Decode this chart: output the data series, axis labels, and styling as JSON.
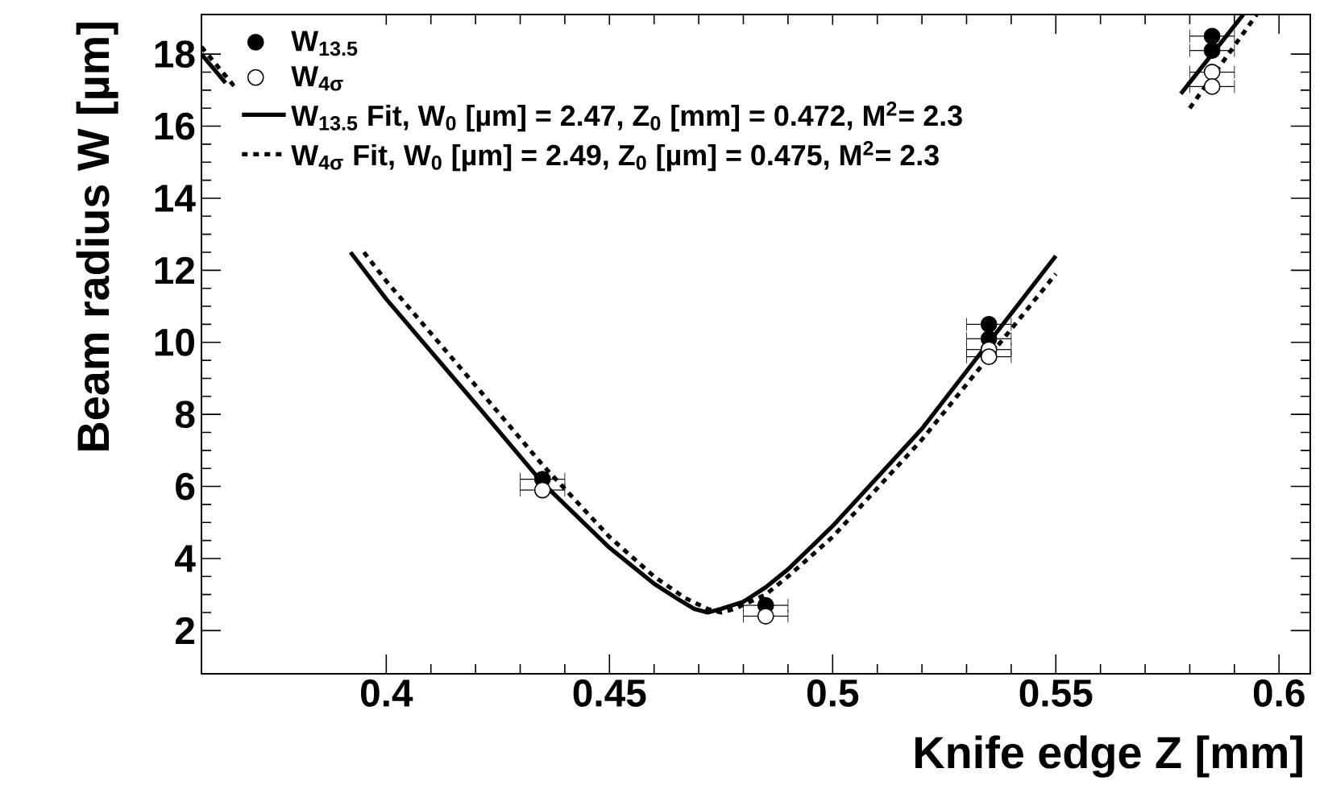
{
  "chart_data": {
    "type": "scatter",
    "xlabel": "Knife edge Z [mm]",
    "ylabel": "Beam radius W [µm]",
    "xlim": [
      0.3586,
      0.607
    ],
    "ylim": [
      0.8,
      19.1
    ],
    "xticks": [
      0.4,
      0.45,
      0.5,
      0.55,
      0.6
    ],
    "yticks": [
      2,
      4,
      6,
      8,
      10,
      12,
      14,
      16,
      18
    ],
    "legend": "top left",
    "marker": "circle",
    "series": [
      {
        "name": "W$_{13.5}$",
        "color": "#000000",
        "x": [
          0.435,
          0.485,
          0.535,
          0.535,
          0.585,
          0.585
        ],
        "values": [
          6.2,
          2.7,
          10.5,
          10.1,
          18.5,
          18.1
        ],
        "xerrors": [
          0.005,
          0.005,
          0.005,
          0.005,
          0.005,
          0.005
        ]
      },
      {
        "name": "W$_{4σ}$",
        "color": "#ffffff",
        "x": [
          0.435,
          0.485,
          0.535,
          0.535,
          0.585,
          0.585
        ],
        "values": [
          5.9,
          2.4,
          9.8,
          9.6,
          17.5,
          17.1
        ],
        "xerrors": [
          0.005,
          0.005,
          0.005,
          0.005,
          0.005,
          0.005
        ]
      },
      {
        "name": "W$_{13.5}$ Fit, W$_{0}$ [µm] = 2.47, Z$_{0}$ [mm] = 0.472, M$^{2}$= 2.3",
        "type": "line",
        "marker": "none",
        "line_style": "solid",
        "color": "#000000",
        "x": [
          0.3586,
          0.364,
          0.38,
          0.392,
          0.4,
          0.42,
          0.435,
          0.45,
          0.46,
          0.465,
          0.469,
          0.472,
          0.475,
          0.48,
          0.485,
          0.49,
          0.5,
          0.52,
          0.535,
          0.55,
          0.565,
          0.578,
          0.585,
          0.592
        ],
        "values": [
          18.0,
          17.2,
          null,
          12.5,
          11.2,
          8.3,
          6.1,
          4.3,
          3.3,
          2.9,
          2.6,
          2.5,
          2.6,
          2.8,
          3.2,
          3.7,
          4.9,
          7.6,
          10.0,
          12.4,
          null,
          16.9,
          18.0,
          19.1
        ]
      },
      {
        "name": "W$_{4σ}$ Fit, W$_{0}$ [µm] = 2.49, Z$_{0}$ [µm] = 0.475, M$^{2}$= 2.3",
        "type": "line",
        "marker": "none",
        "line_style": "dotted",
        "color": "#000000",
        "x": [
          0.3586,
          0.366,
          0.38,
          0.395,
          0.4,
          0.42,
          0.435,
          0.45,
          0.46,
          0.467,
          0.472,
          0.475,
          0.478,
          0.485,
          0.49,
          0.5,
          0.52,
          0.535,
          0.55,
          0.565,
          0.58,
          0.595
        ],
        "values": [
          18.2,
          17.1,
          null,
          12.5,
          11.7,
          8.8,
          6.6,
          4.6,
          3.5,
          2.9,
          2.6,
          2.5,
          2.6,
          3.0,
          3.5,
          4.6,
          7.3,
          9.6,
          11.9,
          null,
          16.5,
          19.1
        ]
      }
    ]
  }
}
